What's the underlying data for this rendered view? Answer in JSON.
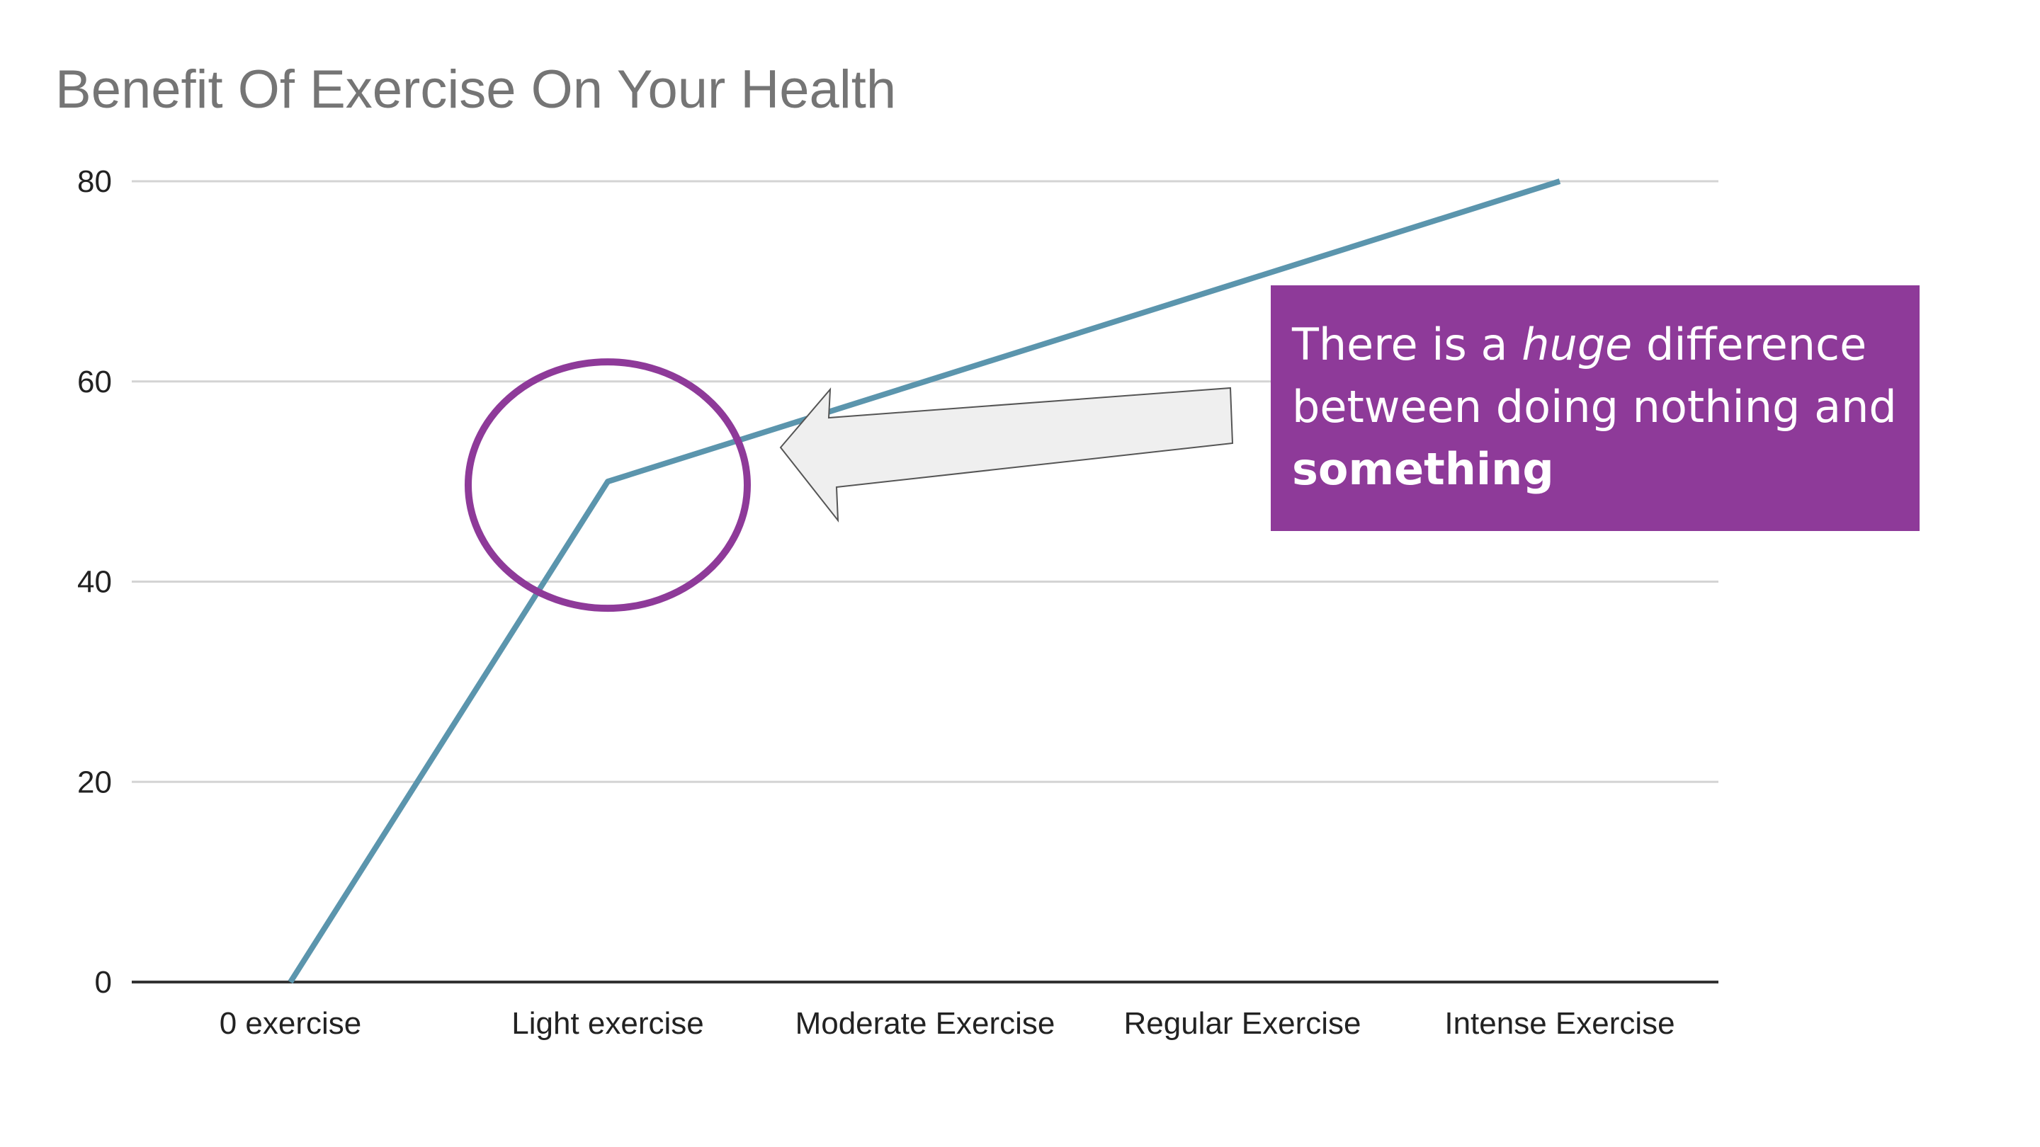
{
  "chart_data": {
    "type": "line",
    "title": "Benefit Of Exercise On Your Health",
    "xlabel": "",
    "ylabel": "",
    "categories": [
      "0 exercise",
      "Light exercise",
      "Moderate Exercise",
      "Regular Exercise",
      "Intense Exercise"
    ],
    "series": [
      {
        "values": [
          0,
          50,
          60,
          70,
          80
        ]
      }
    ],
    "ylim": [
      0,
      80
    ],
    "yticks": [
      0,
      20,
      40,
      60,
      80
    ],
    "grid": true,
    "legend": "none",
    "colors": {
      "line": "#5b95ad",
      "grid": "#d4d4d4",
      "axis": "#333333",
      "highlight_circle": "#8e3a99",
      "callout_bg": "#8e3a99",
      "arrow_fill": "#efefef",
      "arrow_stroke": "#555555"
    },
    "annotations": {
      "highlight_category": "Light exercise",
      "callout": {
        "part1": "There is a ",
        "emph": "huge",
        "part2": " difference between doing nothing and ",
        "strong": "something"
      }
    }
  }
}
